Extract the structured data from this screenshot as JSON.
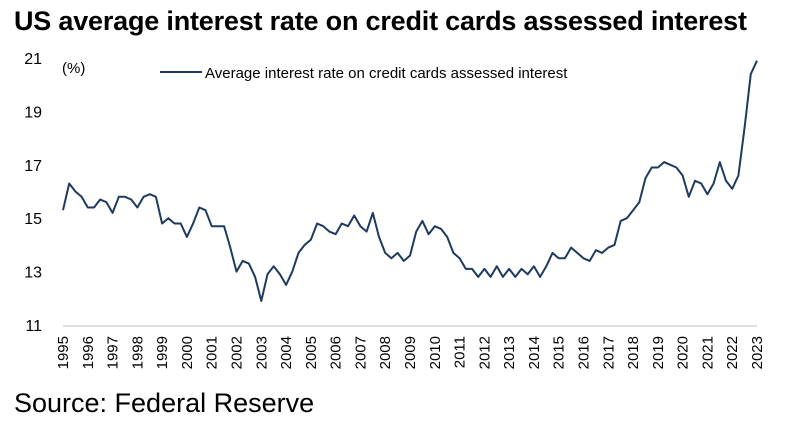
{
  "title": "US average interest rate on credit cards assessed interest",
  "source": "Source: Federal Reserve",
  "chart_data": {
    "type": "line",
    "unit_label": "(%)",
    "xlabel": "",
    "ylabel": "",
    "ylim": [
      11,
      21
    ],
    "yticks": [
      11,
      13,
      15,
      17,
      19,
      21
    ],
    "xlim": [
      1995,
      2023
    ],
    "xticks": [
      "1995",
      "1996",
      "1997",
      "1998",
      "1999",
      "2000",
      "2001",
      "2002",
      "2003",
      "2004",
      "2005",
      "2006",
      "2007",
      "2008",
      "2009",
      "2010",
      "2011",
      "2012",
      "2013",
      "2014",
      "2015",
      "2016",
      "2017",
      "2018",
      "2019",
      "2020",
      "2021",
      "2022",
      "2023"
    ],
    "grid": false,
    "legend_position": "top",
    "line_color": "#1f3a5f",
    "series": [
      {
        "name": "Average interest rate on credit cards assessed interest",
        "points": [
          [
            1995.0,
            15.3
          ],
          [
            1995.25,
            16.3
          ],
          [
            1995.5,
            16.0
          ],
          [
            1995.75,
            15.8
          ],
          [
            1996.0,
            15.4
          ],
          [
            1996.25,
            15.4
          ],
          [
            1996.5,
            15.7
          ],
          [
            1996.75,
            15.6
          ],
          [
            1997.0,
            15.2
          ],
          [
            1997.25,
            15.8
          ],
          [
            1997.5,
            15.8
          ],
          [
            1997.75,
            15.7
          ],
          [
            1998.0,
            15.4
          ],
          [
            1998.25,
            15.8
          ],
          [
            1998.5,
            15.9
          ],
          [
            1998.75,
            15.8
          ],
          [
            1999.0,
            14.8
          ],
          [
            1999.25,
            15.0
          ],
          [
            1999.5,
            14.8
          ],
          [
            1999.75,
            14.8
          ],
          [
            2000.0,
            14.3
          ],
          [
            2000.25,
            14.8
          ],
          [
            2000.5,
            15.4
          ],
          [
            2000.75,
            15.3
          ],
          [
            2001.0,
            14.7
          ],
          [
            2001.25,
            14.7
          ],
          [
            2001.5,
            14.7
          ],
          [
            2001.75,
            13.9
          ],
          [
            2002.0,
            13.0
          ],
          [
            2002.25,
            13.4
          ],
          [
            2002.5,
            13.3
          ],
          [
            2002.75,
            12.8
          ],
          [
            2003.0,
            11.9
          ],
          [
            2003.25,
            12.9
          ],
          [
            2003.5,
            13.2
          ],
          [
            2003.75,
            12.9
          ],
          [
            2004.0,
            12.5
          ],
          [
            2004.25,
            13.0
          ],
          [
            2004.5,
            13.7
          ],
          [
            2004.75,
            14.0
          ],
          [
            2005.0,
            14.2
          ],
          [
            2005.25,
            14.8
          ],
          [
            2005.5,
            14.7
          ],
          [
            2005.75,
            14.5
          ],
          [
            2006.0,
            14.4
          ],
          [
            2006.25,
            14.8
          ],
          [
            2006.5,
            14.7
          ],
          [
            2006.75,
            15.1
          ],
          [
            2007.0,
            14.7
          ],
          [
            2007.25,
            14.5
          ],
          [
            2007.5,
            15.2
          ],
          [
            2007.75,
            14.3
          ],
          [
            2008.0,
            13.7
          ],
          [
            2008.25,
            13.5
          ],
          [
            2008.5,
            13.7
          ],
          [
            2008.75,
            13.4
          ],
          [
            2009.0,
            13.6
          ],
          [
            2009.25,
            14.5
          ],
          [
            2009.5,
            14.9
          ],
          [
            2009.75,
            14.4
          ],
          [
            2010.0,
            14.7
          ],
          [
            2010.25,
            14.6
          ],
          [
            2010.5,
            14.3
          ],
          [
            2010.75,
            13.7
          ],
          [
            2011.0,
            13.5
          ],
          [
            2011.25,
            13.1
          ],
          [
            2011.5,
            13.1
          ],
          [
            2011.75,
            12.8
          ],
          [
            2012.0,
            13.1
          ],
          [
            2012.25,
            12.8
          ],
          [
            2012.5,
            13.2
          ],
          [
            2012.75,
            12.8
          ],
          [
            2013.0,
            13.1
          ],
          [
            2013.25,
            12.8
          ],
          [
            2013.5,
            13.1
          ],
          [
            2013.75,
            12.9
          ],
          [
            2014.0,
            13.2
          ],
          [
            2014.25,
            12.8
          ],
          [
            2014.5,
            13.2
          ],
          [
            2014.75,
            13.7
          ],
          [
            2015.0,
            13.5
          ],
          [
            2015.25,
            13.5
          ],
          [
            2015.5,
            13.9
          ],
          [
            2015.75,
            13.7
          ],
          [
            2016.0,
            13.5
          ],
          [
            2016.25,
            13.4
          ],
          [
            2016.5,
            13.8
          ],
          [
            2016.75,
            13.7
          ],
          [
            2017.0,
            13.9
          ],
          [
            2017.25,
            14.0
          ],
          [
            2017.5,
            14.9
          ],
          [
            2017.75,
            15.0
          ],
          [
            2018.0,
            15.3
          ],
          [
            2018.25,
            15.6
          ],
          [
            2018.5,
            16.5
          ],
          [
            2018.75,
            16.9
          ],
          [
            2019.0,
            16.9
          ],
          [
            2019.25,
            17.1
          ],
          [
            2019.5,
            17.0
          ],
          [
            2019.75,
            16.9
          ],
          [
            2020.0,
            16.6
          ],
          [
            2020.25,
            15.8
          ],
          [
            2020.5,
            16.4
          ],
          [
            2020.75,
            16.3
          ],
          [
            2021.0,
            15.9
          ],
          [
            2021.25,
            16.3
          ],
          [
            2021.5,
            17.1
          ],
          [
            2021.75,
            16.4
          ],
          [
            2022.0,
            16.1
          ],
          [
            2022.25,
            16.6
          ],
          [
            2022.5,
            18.4
          ],
          [
            2022.75,
            20.4
          ],
          [
            2023.0,
            20.9
          ]
        ]
      }
    ]
  }
}
